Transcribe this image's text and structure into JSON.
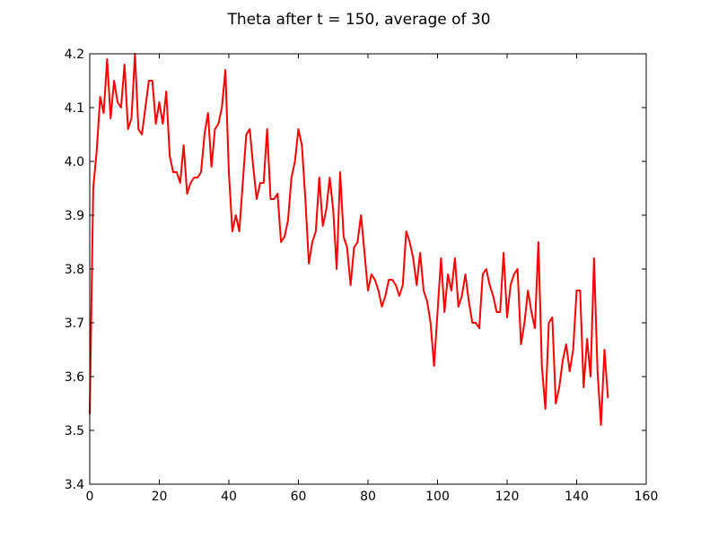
{
  "chart_data": {
    "type": "line",
    "title": "Theta after t = 150, average of 30",
    "xlabel": "",
    "ylabel": "",
    "xlim": [
      0,
      160
    ],
    "ylim": [
      3.4,
      4.2
    ],
    "xticks": [
      0,
      20,
      40,
      60,
      80,
      100,
      120,
      140,
      160
    ],
    "xtick_labels": [
      "0",
      "20",
      "40",
      "60",
      "80",
      "100",
      "120",
      "140",
      "160"
    ],
    "yticks": [
      3.4,
      3.5,
      3.6,
      3.7,
      3.8,
      3.9,
      4.0,
      4.1,
      4.2
    ],
    "ytick_labels": [
      "3.4",
      "3.5",
      "3.6",
      "3.7",
      "3.8",
      "3.9",
      "4.0",
      "4.1",
      "4.2"
    ],
    "grid": false,
    "legend": "none",
    "series": [
      {
        "color": "#ff0000",
        "x": [
          0,
          1,
          2,
          3,
          4,
          5,
          6,
          7,
          8,
          9,
          10,
          11,
          12,
          13,
          14,
          15,
          16,
          17,
          18,
          19,
          20,
          21,
          22,
          23,
          24,
          25,
          26,
          27,
          28,
          29,
          30,
          31,
          32,
          33,
          34,
          35,
          36,
          37,
          38,
          39,
          40,
          41,
          42,
          43,
          44,
          45,
          46,
          47,
          48,
          49,
          50,
          51,
          52,
          53,
          54,
          55,
          56,
          57,
          58,
          59,
          60,
          61,
          62,
          63,
          64,
          65,
          66,
          67,
          68,
          69,
          70,
          71,
          72,
          73,
          74,
          75,
          76,
          77,
          78,
          79,
          80,
          81,
          82,
          83,
          84,
          85,
          86,
          87,
          88,
          89,
          90,
          91,
          92,
          93,
          94,
          95,
          96,
          97,
          98,
          99,
          100,
          101,
          102,
          103,
          104,
          105,
          106,
          107,
          108,
          109,
          110,
          111,
          112,
          113,
          114,
          115,
          116,
          117,
          118,
          119,
          120,
          121,
          122,
          123,
          124,
          125,
          126,
          127,
          128,
          129,
          130,
          131,
          132,
          133,
          134,
          135,
          136,
          137,
          138,
          139,
          140,
          141,
          142,
          143,
          144,
          145,
          146,
          147,
          148,
          149
        ],
        "y": [
          3.53,
          3.95,
          4.02,
          4.12,
          4.09,
          4.19,
          4.08,
          4.15,
          4.11,
          4.1,
          4.18,
          4.06,
          4.08,
          4.2,
          4.06,
          4.05,
          4.1,
          4.15,
          4.15,
          4.07,
          4.11,
          4.07,
          4.13,
          4.01,
          3.98,
          3.98,
          3.96,
          4.03,
          3.94,
          3.96,
          3.97,
          3.97,
          3.98,
          4.05,
          4.09,
          3.99,
          4.06,
          4.07,
          4.1,
          4.17,
          3.98,
          3.87,
          3.9,
          3.87,
          3.96,
          4.05,
          4.06,
          3.99,
          3.93,
          3.96,
          3.96,
          4.06,
          3.93,
          3.93,
          3.94,
          3.85,
          3.86,
          3.89,
          3.97,
          4.0,
          4.06,
          4.03,
          3.93,
          3.81,
          3.85,
          3.87,
          3.97,
          3.88,
          3.91,
          3.97,
          3.91,
          3.8,
          3.98,
          3.86,
          3.84,
          3.77,
          3.84,
          3.85,
          3.9,
          3.83,
          3.76,
          3.79,
          3.78,
          3.76,
          3.73,
          3.75,
          3.78,
          3.78,
          3.77,
          3.75,
          3.77,
          3.87,
          3.85,
          3.82,
          3.77,
          3.83,
          3.76,
          3.74,
          3.7,
          3.62,
          3.72,
          3.82,
          3.72,
          3.79,
          3.76,
          3.82,
          3.73,
          3.75,
          3.79,
          3.74,
          3.7,
          3.7,
          3.69,
          3.79,
          3.8,
          3.77,
          3.75,
          3.72,
          3.72,
          3.83,
          3.71,
          3.77,
          3.79,
          3.8,
          3.66,
          3.7,
          3.76,
          3.72,
          3.69,
          3.85,
          3.62,
          3.54,
          3.7,
          3.71,
          3.55,
          3.58,
          3.63,
          3.66,
          3.61,
          3.65,
          3.76,
          3.76,
          3.58,
          3.67,
          3.6,
          3.82,
          3.61,
          3.51,
          3.65,
          3.56
        ]
      }
    ]
  }
}
